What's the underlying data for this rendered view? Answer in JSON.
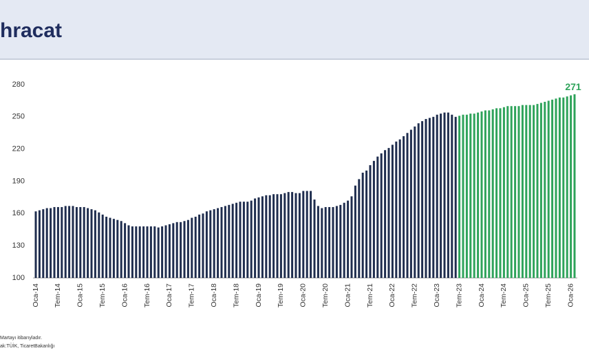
{
  "chart_data": {
    "type": "bar",
    "title": "hracat",
    "notes": [
      "Martayı itibarıyladır.",
      "ak:TÜİK, TicaretBakanlığı"
    ],
    "categories": [
      "Oca-14",
      null,
      null,
      null,
      null,
      null,
      "Tem-14",
      null,
      null,
      null,
      null,
      null,
      "Oca-15",
      null,
      null,
      null,
      null,
      null,
      "Tem-15",
      null,
      null,
      null,
      null,
      null,
      "Oca-16",
      null,
      null,
      null,
      null,
      null,
      "Tem-16",
      null,
      null,
      null,
      null,
      null,
      "Oca-17",
      null,
      null,
      null,
      null,
      null,
      "Tem-17",
      null,
      null,
      null,
      null,
      null,
      "Oca-18",
      null,
      null,
      null,
      null,
      null,
      "Tem-18",
      null,
      null,
      null,
      null,
      null,
      "Oca-19",
      null,
      null,
      null,
      null,
      null,
      "Tem-19",
      null,
      null,
      null,
      null,
      null,
      "Oca-20",
      null,
      null,
      null,
      null,
      null,
      "Tem-20",
      null,
      null,
      null,
      null,
      null,
      "Oca-21",
      null,
      null,
      null,
      null,
      null,
      "Tem-21",
      null,
      null,
      null,
      null,
      null,
      "Oca-22",
      null,
      null,
      null,
      null,
      null,
      "Tem-22",
      null,
      null,
      null,
      null,
      null,
      "Oca-23",
      null,
      null,
      null,
      null,
      null,
      "Tem-23",
      null,
      null,
      null,
      null,
      null,
      "Oca-24",
      null,
      null,
      null,
      null,
      null,
      "Tem-24",
      null,
      null,
      null,
      null,
      null,
      "Oca-25",
      null,
      null,
      null,
      null,
      null,
      "Tem-25",
      null,
      null,
      null,
      null,
      null,
      "Oca-26",
      null
    ],
    "series": [
      {
        "color": "#1f2d4e",
        "values": [
          162,
          163,
          164,
          165,
          165,
          166,
          166,
          166,
          167,
          167,
          167,
          166,
          166,
          166,
          165,
          164,
          163,
          161,
          159,
          157,
          156,
          155,
          154,
          153,
          151,
          149,
          148,
          148,
          148,
          148,
          148,
          148,
          148,
          147,
          148,
          149,
          150,
          151,
          152,
          152,
          153,
          154,
          156,
          157,
          159,
          160,
          162,
          163,
          164,
          165,
          166,
          167,
          168,
          169,
          170,
          171,
          171,
          171,
          172,
          174,
          175,
          176,
          177,
          177,
          178,
          178,
          178,
          179,
          180,
          180,
          179,
          179,
          181,
          181,
          181,
          173,
          167,
          165,
          166,
          166,
          166,
          167,
          168,
          170,
          172,
          176,
          186,
          192,
          198,
          200,
          205,
          209,
          213,
          216,
          219,
          221,
          224,
          227,
          229,
          232,
          235,
          238,
          241,
          244,
          246,
          248,
          249,
          250,
          252,
          253,
          254,
          254,
          252,
          250,
          null,
          null,
          null,
          null,
          null,
          null,
          null,
          null,
          null,
          null,
          null,
          null,
          null,
          null,
          null,
          null,
          null,
          null,
          null,
          null,
          null,
          null,
          null,
          null,
          null,
          null,
          null,
          null,
          null,
          null,
          null,
          null
        ]
      },
      {
        "color": "#2ea35a",
        "values": [
          null,
          null,
          null,
          null,
          null,
          null,
          null,
          null,
          null,
          null,
          null,
          null,
          null,
          null,
          null,
          null,
          null,
          null,
          null,
          null,
          null,
          null,
          null,
          null,
          null,
          null,
          null,
          null,
          null,
          null,
          null,
          null,
          null,
          null,
          null,
          null,
          null,
          null,
          null,
          null,
          null,
          null,
          null,
          null,
          null,
          null,
          null,
          null,
          null,
          null,
          null,
          null,
          null,
          null,
          null,
          null,
          null,
          null,
          null,
          null,
          null,
          null,
          null,
          null,
          null,
          null,
          null,
          null,
          null,
          null,
          null,
          null,
          null,
          null,
          null,
          null,
          null,
          null,
          null,
          null,
          null,
          null,
          null,
          null,
          null,
          null,
          null,
          null,
          null,
          null,
          null,
          null,
          null,
          null,
          null,
          null,
          null,
          null,
          null,
          null,
          null,
          null,
          null,
          null,
          null,
          null,
          null,
          null,
          null,
          null,
          null,
          null,
          null,
          null,
          251,
          252,
          252,
          253,
          253,
          254,
          255,
          256,
          256,
          257,
          258,
          258,
          259,
          260,
          260,
          260,
          260,
          261,
          261,
          261,
          261,
          262,
          263,
          264,
          265,
          266,
          267,
          268,
          268,
          269,
          270,
          271
        ]
      }
    ],
    "ylim": [
      100,
      280
    ],
    "yticks": [
      100,
      130,
      160,
      190,
      220,
      250,
      280
    ],
    "grid": false
  }
}
